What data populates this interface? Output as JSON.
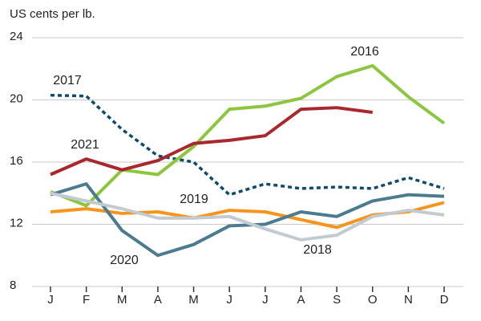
{
  "chart_data": {
    "type": "line",
    "y_label": "US cents per lb.",
    "categories": [
      "J",
      "F",
      "M",
      "A",
      "M",
      "J",
      "J",
      "A",
      "S",
      "O",
      "N",
      "D"
    ],
    "ylim": [
      8,
      24
    ],
    "yticks": [
      8,
      12,
      16,
      20,
      24
    ],
    "grid": true,
    "series": [
      {
        "name": "2017",
        "color": "#0f4c6b",
        "style": "dashed",
        "values": [
          20.3,
          20.25,
          18.1,
          16.4,
          16.0,
          13.9,
          14.6,
          14.3,
          14.4,
          14.3,
          15.0,
          14.3
        ]
      },
      {
        "name": "2016",
        "color": "#8cc63f",
        "style": "solid",
        "values": [
          14.1,
          13.2,
          15.5,
          15.2,
          17.0,
          19.4,
          19.6,
          20.1,
          21.5,
          22.2,
          20.2,
          18.5
        ]
      },
      {
        "name": "2021",
        "color": "#a8282d",
        "style": "solid",
        "values": [
          15.2,
          16.2,
          15.5,
          16.1,
          17.2,
          17.4,
          17.7,
          19.4,
          19.5,
          19.2,
          null,
          null
        ]
      },
      {
        "name": "2019",
        "color": "#f7941d",
        "style": "solid",
        "values": [
          12.8,
          13.0,
          12.7,
          12.8,
          12.4,
          12.9,
          12.8,
          12.3,
          11.8,
          12.6,
          12.8,
          13.4
        ]
      },
      {
        "name": "2020",
        "color": "#4b7b8e",
        "style": "solid",
        "values": [
          13.9,
          14.6,
          11.6,
          10.0,
          10.7,
          11.9,
          12.0,
          12.8,
          12.5,
          13.5,
          13.9,
          13.8
        ]
      },
      {
        "name": "2018",
        "color": "#c2cbd1",
        "style": "solid",
        "values": [
          14.0,
          13.5,
          13.0,
          12.4,
          12.4,
          12.5,
          11.7,
          11.0,
          11.3,
          12.5,
          12.9,
          12.6
        ]
      }
    ]
  }
}
